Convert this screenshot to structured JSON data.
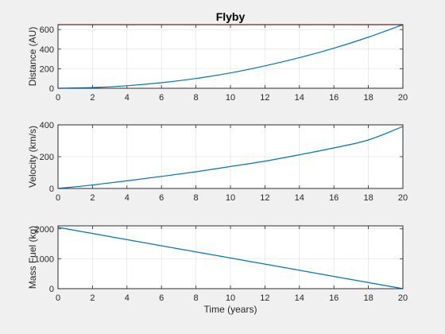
{
  "chart_data": [
    {
      "type": "line",
      "title": "Flyby",
      "xlabel": "",
      "ylabel": "Distance (AU)",
      "xlim": [
        0,
        20
      ],
      "ylim": [
        0,
        650
      ],
      "xticks": [
        0,
        2,
        4,
        6,
        8,
        10,
        12,
        14,
        16,
        18,
        20
      ],
      "yticks": [
        0,
        200,
        400,
        600
      ],
      "grid": true,
      "reference_line": {
        "y": 650,
        "color": "#d62728"
      },
      "series": [
        {
          "color": "#0072bd",
          "x": [
            0,
            2,
            4,
            6,
            8,
            10,
            12,
            14,
            16,
            18,
            20
          ],
          "y": [
            0,
            7,
            26,
            57,
            100,
            157,
            229,
            313,
            410,
            522,
            650
          ]
        }
      ]
    },
    {
      "type": "line",
      "title": "",
      "xlabel": "",
      "ylabel": "Velocity (km/s)",
      "xlim": [
        0,
        20
      ],
      "ylim": [
        0,
        400
      ],
      "xticks": [
        0,
        2,
        4,
        6,
        8,
        10,
        12,
        14,
        16,
        18,
        20
      ],
      "yticks": [
        0,
        200,
        400
      ],
      "grid": true,
      "series": [
        {
          "color": "#0072bd",
          "x": [
            0,
            2,
            4,
            6,
            8,
            10,
            12,
            14,
            16,
            18,
            20
          ],
          "y": [
            0,
            22,
            48,
            76,
            105,
            138,
            172,
            212,
            255,
            305,
            390
          ]
        }
      ]
    },
    {
      "type": "line",
      "title": "",
      "xlabel": "Time (years)",
      "ylabel": "Mass Fuel (kg)",
      "xlim": [
        0,
        20
      ],
      "ylim": [
        0,
        2100
      ],
      "xticks": [
        0,
        2,
        4,
        6,
        8,
        10,
        12,
        14,
        16,
        18,
        20
      ],
      "yticks": [
        0,
        1000,
        2000
      ],
      "grid": true,
      "series": [
        {
          "color": "#0072bd",
          "x": [
            0,
            20
          ],
          "y": [
            2050,
            0
          ]
        }
      ]
    }
  ]
}
